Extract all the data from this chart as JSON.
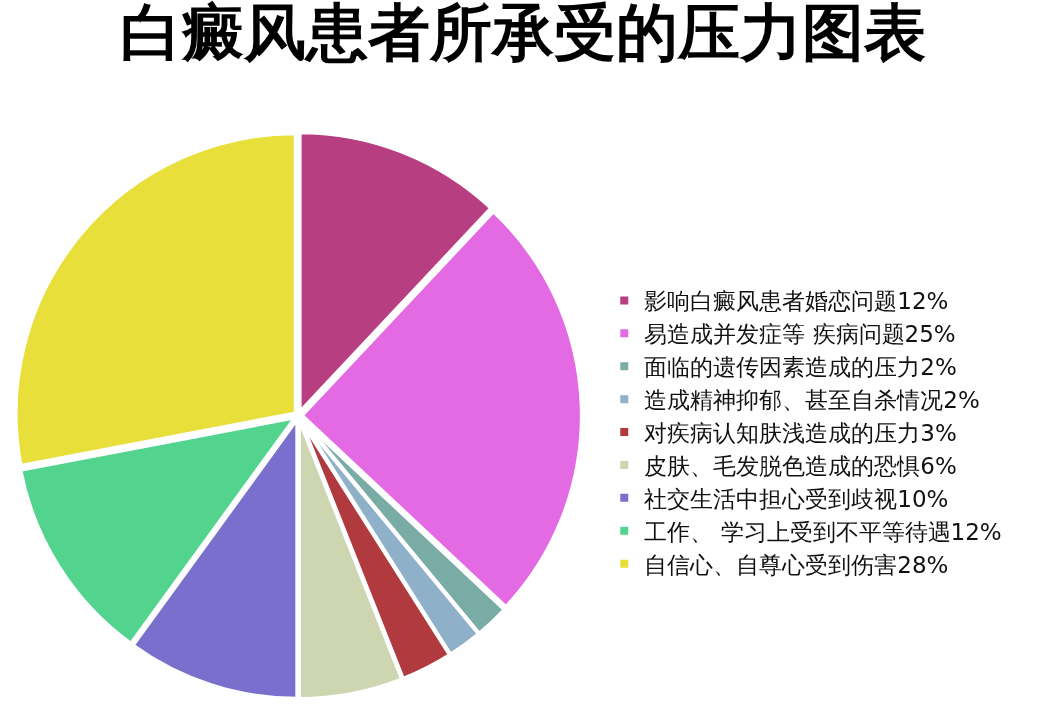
{
  "chart_data": {
    "type": "pie",
    "title": "白癜风患者所承受的压力图表",
    "categories": [
      "影响白癜风患者婚恋问题12%",
      "易造成并发症等 疾病问题25%",
      "面临的遗传因素造成的压力2%",
      "造成精神抑郁、甚至自杀情况2%",
      "对疾病认知肤浅造成的压力3%",
      "皮肤、毛发脱色造成的恐惧6%",
      "社交生活中担心受到歧视10%",
      "工作、 学习上受到不平等待遇12%",
      "自信心、自尊心受到伤害28%"
    ],
    "values": [
      12,
      25,
      2,
      2,
      3,
      6,
      10,
      12,
      28
    ],
    "colors": [
      "#b73e80",
      "#e46ae3",
      "#7aaca6",
      "#8eb0c9",
      "#b03a3e",
      "#cdd6b1",
      "#7a6fcd",
      "#52d48f",
      "#e8df3b"
    ],
    "legend": "right"
  }
}
